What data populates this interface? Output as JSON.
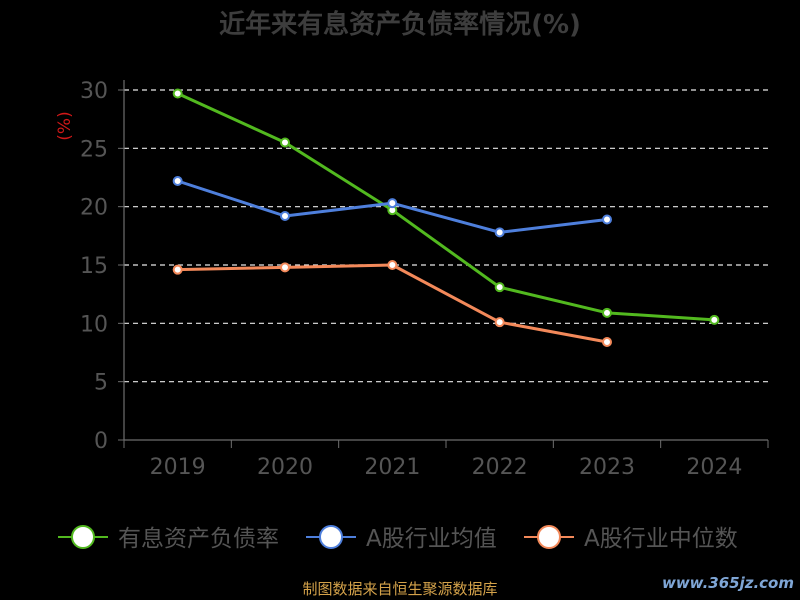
{
  "chart_data": {
    "type": "line",
    "title": "近年来有息资产负债率情况(%)",
    "ylabel": "(%)",
    "ylim": [
      0,
      30
    ],
    "yticks": [
      0,
      5,
      10,
      15,
      20,
      25,
      30
    ],
    "categories": [
      "2019",
      "2020",
      "2021",
      "2022",
      "2023",
      "2024"
    ],
    "series": [
      {
        "name": "有息资产负债率",
        "color": "#52b91f",
        "values": [
          29.7,
          25.5,
          19.7,
          13.1,
          10.9,
          10.3
        ]
      },
      {
        "name": "A股行业均值",
        "color": "#4e7fdc",
        "values": [
          22.2,
          19.2,
          20.3,
          17.8,
          18.9,
          null
        ]
      },
      {
        "name": "A股行业中位数",
        "color": "#f3895a",
        "values": [
          14.6,
          14.8,
          15.0,
          10.1,
          8.4,
          null
        ]
      }
    ],
    "grid": true,
    "legend": "bottom"
  },
  "source": "制图数据来自恒生聚源数据库",
  "watermark": "www.365jz.com"
}
